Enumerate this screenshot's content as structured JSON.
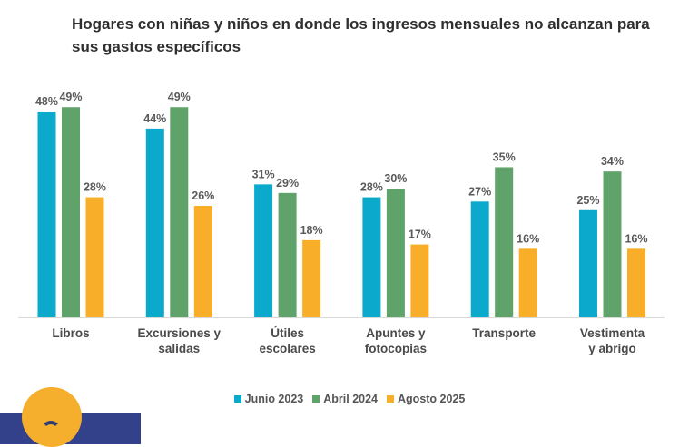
{
  "chart_data": {
    "type": "bar",
    "title": "Hogares con niñas y niños en donde los ingresos mensuales no alcanzan para sus gastos específicos",
    "categories": [
      [
        "Libros"
      ],
      [
        "Excursiones y",
        "salidas"
      ],
      [
        "Útiles",
        "escolares"
      ],
      [
        "Apuntes y",
        "fotocopias"
      ],
      [
        "Transporte"
      ],
      [
        "Vestimenta",
        "y abrigo"
      ]
    ],
    "series": [
      {
        "name": "Junio 2023",
        "color": "#0baacd",
        "values": [
          48,
          44,
          31,
          28,
          27,
          25
        ]
      },
      {
        "name": "Abril 2024",
        "color": "#5fa36a",
        "values": [
          49,
          49,
          29,
          30,
          35,
          34
        ]
      },
      {
        "name": "Agosto 2025",
        "color": "#f9ae2a",
        "values": [
          28,
          26,
          18,
          17,
          16,
          16
        ]
      }
    ],
    "value_suffix": "%",
    "ylim": [
      0,
      50
    ],
    "grid": false,
    "legend": "bottom"
  }
}
